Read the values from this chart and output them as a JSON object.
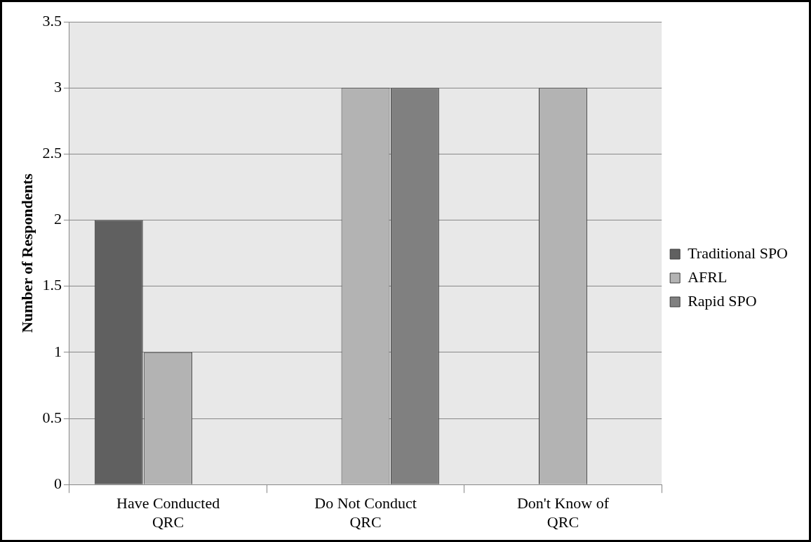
{
  "chart_data": {
    "type": "bar",
    "ylabel": "Number of Respondents",
    "categories": [
      "Have Conducted QRC",
      "Do Not Conduct QRC",
      "Don't Know of QRC"
    ],
    "series": [
      {
        "name": "Traditional SPO",
        "color": "#606060",
        "values": [
          2,
          0,
          0
        ]
      },
      {
        "name": "AFRL",
        "color": "#b3b3b3",
        "values": [
          1,
          3,
          3
        ]
      },
      {
        "name": "Rapid SPO",
        "color": "#808080",
        "values": [
          0,
          3,
          0
        ]
      }
    ],
    "ylim": [
      0,
      3.5
    ],
    "yticks": [
      0,
      0.5,
      1,
      1.5,
      2,
      2.5,
      3,
      3.5
    ],
    "grid": "y",
    "legend": "right"
  }
}
